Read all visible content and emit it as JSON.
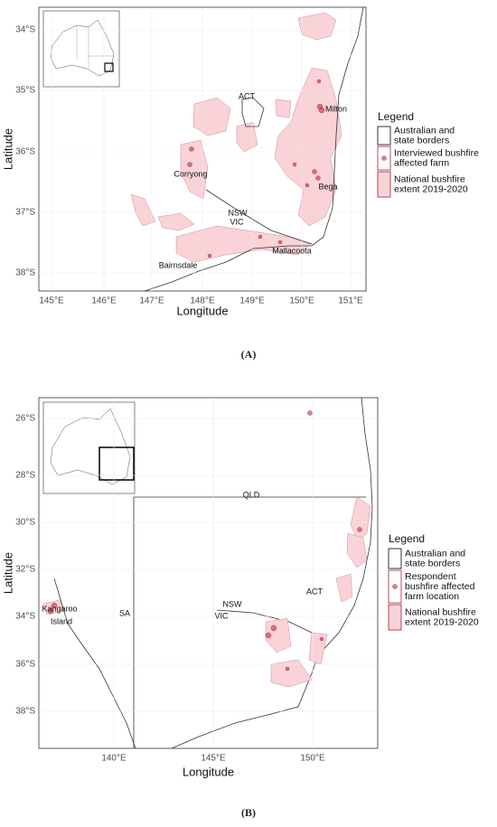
{
  "panels": [
    {
      "y_ticks": [
        "34°S",
        "35°S",
        "36°S",
        "37°S",
        "38°S"
      ],
      "x_ticks": [
        "145°E",
        "146°E",
        "147°E",
        "148°E",
        "149°E",
        "150°E",
        "151°E"
      ],
      "x_label": "Longitude",
      "y_label": "Latitude",
      "places": [
        "ACT",
        "Milton",
        "Corryong",
        "Bega",
        "NSW",
        "VIC",
        "Mallacoota",
        "Bairnsdale"
      ],
      "legend": {
        "title": "Legend",
        "items": [
          [
            "Australian and",
            "state borders"
          ],
          [
            "Interviewed bushfire",
            "affected farm"
          ],
          [
            "National bushfire",
            "extent 2019-2020"
          ]
        ]
      },
      "caption": "(A)"
    },
    {
      "y_ticks": [
        "26°S",
        "28°S",
        "30°S",
        "32°S",
        "34°S",
        "36°S",
        "38°S"
      ],
      "x_ticks": [
        "140°E",
        "145°E",
        "150°E"
      ],
      "x_label": "Longitude",
      "y_label": "Latitude",
      "places": [
        "QLD",
        "NSW",
        "ACT",
        "VIC",
        "SA",
        "Kangaroo",
        "Island"
      ],
      "legend": {
        "title": "Legend",
        "items": [
          [
            "Australian and",
            "state borders"
          ],
          [
            "Respondent",
            "bushfire affected",
            "farm location"
          ],
          [
            "National bushfire",
            "extent 2019-2020"
          ]
        ]
      },
      "caption": "(B)"
    }
  ]
}
